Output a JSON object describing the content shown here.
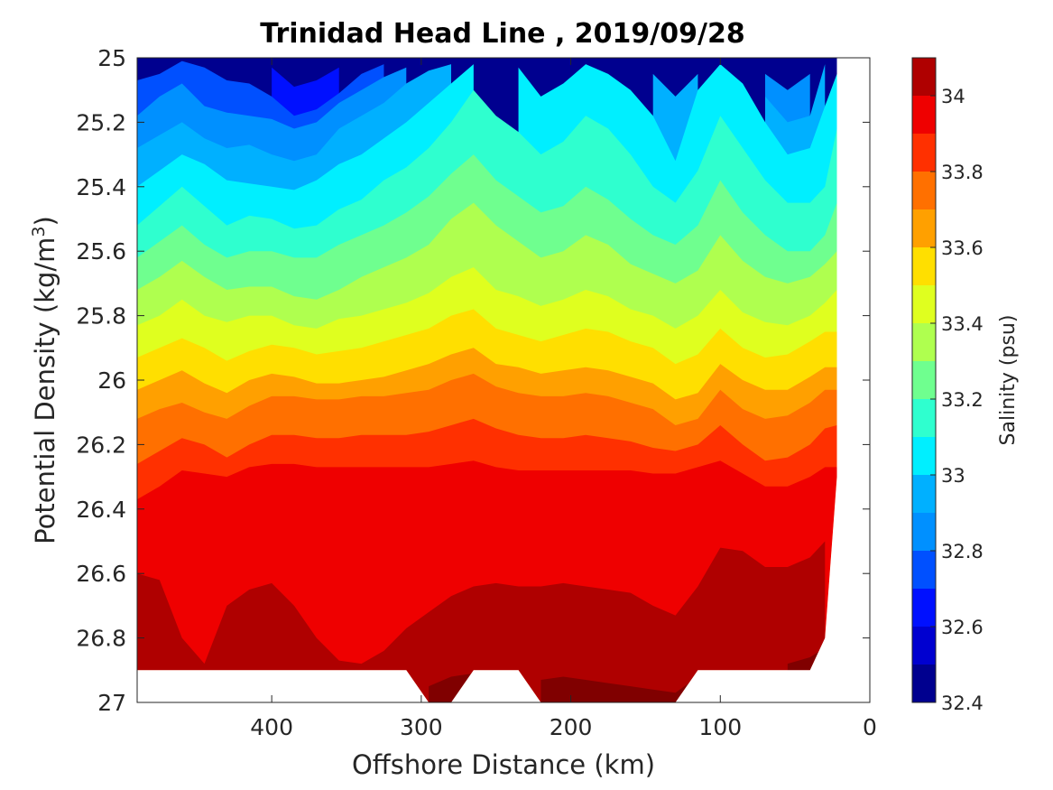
{
  "chart_data": {
    "type": "heatmap",
    "subtype": "filled-contour",
    "title": "Trinidad Head Line , 2019/09/28",
    "xlabel": "Offshore Distance (km)",
    "ylabel": "Potential Density (kg/m³)",
    "ylabel_main": "Potential Density (kg/m",
    "ylabel_sup": "3",
    "ylabel_close": ")",
    "xlim": [
      490,
      0
    ],
    "x_reversed": true,
    "ylim": [
      25,
      27
    ],
    "y_reversed": true,
    "xticks": [
      400,
      300,
      200,
      100,
      0
    ],
    "xtick_labels": [
      "400",
      "300",
      "200",
      "100",
      "0"
    ],
    "yticks": [
      25,
      25.2,
      25.4,
      25.6,
      25.8,
      26,
      26.2,
      26.4,
      26.6,
      26.8,
      27
    ],
    "ytick_labels": [
      "25",
      "25.2",
      "25.4",
      "25.6",
      "25.8",
      "26",
      "26.2",
      "26.4",
      "26.6",
      "26.8",
      "27"
    ],
    "data_x_range": [
      490,
      22
    ],
    "colorbar": {
      "label": "Salinity (psu)",
      "range": [
        32.4,
        34.1
      ],
      "levels": [
        32.4,
        32.5,
        32.6,
        32.7,
        32.8,
        32.9,
        33.0,
        33.1,
        33.2,
        33.3,
        33.4,
        33.5,
        33.6,
        33.7,
        33.8,
        33.9,
        34.0,
        34.1
      ],
      "colors": [
        "#00008f",
        "#0000d0",
        "#0010ff",
        "#0050ff",
        "#0090ff",
        "#00b0ff",
        "#00efff",
        "#2fffcf",
        "#6fff8f",
        "#afff4f",
        "#dfff1f",
        "#ffdf00",
        "#ffa000",
        "#ff7000",
        "#ff3000",
        "#ef0000",
        "#af0000",
        "#800000"
      ],
      "ticks": [
        32.4,
        32.6,
        32.8,
        33.0,
        33.2,
        33.4,
        33.6,
        33.8,
        34.0
      ],
      "tick_labels": [
        "32.4",
        "32.6",
        "32.8",
        "33",
        "33.2",
        "33.4",
        "33.6",
        "33.8",
        "34"
      ]
    },
    "contour_boundaries": {
      "x": [
        490,
        475,
        460,
        445,
        430,
        415,
        400,
        385,
        370,
        355,
        340,
        325,
        310,
        295,
        280,
        265,
        250,
        235,
        220,
        205,
        190,
        175,
        160,
        145,
        130,
        115,
        100,
        85,
        70,
        55,
        40,
        30,
        22
      ],
      "lines": [
        {
          "level": 32.6,
          "y": [
            null,
            25.01,
            null,
            null,
            null,
            null,
            25.03,
            25.09,
            25.07,
            25.03,
            null,
            null,
            null,
            null,
            null,
            null,
            null,
            null,
            null,
            null,
            null,
            null,
            null,
            null,
            null,
            null,
            null,
            null,
            null,
            null,
            null,
            null,
            null
          ]
        },
        {
          "level": 32.7,
          "y": [
            25.07,
            25.05,
            25.01,
            25.03,
            25.07,
            25.08,
            25.12,
            25.18,
            25.16,
            25.11,
            25.05,
            25.02,
            null,
            null,
            null,
            null,
            null,
            null,
            null,
            null,
            null,
            null,
            null,
            null,
            null,
            null,
            null,
            null,
            null,
            null,
            null,
            null,
            null
          ]
        },
        {
          "level": 32.8,
          "y": [
            25.18,
            25.12,
            25.08,
            25.15,
            25.17,
            25.18,
            25.19,
            25.22,
            25.2,
            25.14,
            25.1,
            25.06,
            25.03,
            null,
            null,
            null,
            null,
            null,
            null,
            null,
            null,
            null,
            null,
            null,
            null,
            25.08,
            null,
            null,
            25.05,
            25.1,
            25.05,
            null,
            null
          ]
        },
        {
          "level": 32.9,
          "y": [
            25.28,
            25.24,
            25.2,
            25.25,
            25.28,
            25.27,
            25.3,
            25.32,
            25.3,
            25.22,
            25.18,
            25.14,
            25.08,
            25.04,
            25.02,
            null,
            null,
            null,
            null,
            null,
            null,
            null,
            null,
            25.05,
            25.12,
            25.05,
            null,
            null,
            25.12,
            25.2,
            25.18,
            25.02,
            null
          ]
        },
        {
          "level": 33.0,
          "y": [
            25.4,
            25.35,
            25.3,
            25.33,
            25.38,
            25.39,
            25.4,
            25.41,
            25.38,
            25.33,
            25.3,
            25.25,
            25.2,
            25.14,
            25.08,
            25.02,
            null,
            25.03,
            25.12,
            25.08,
            25.02,
            25.05,
            25.1,
            25.18,
            25.32,
            25.1,
            25.02,
            25.08,
            25.2,
            25.3,
            25.28,
            25.15,
            25.05
          ]
        },
        {
          "level": 33.1,
          "y": [
            25.52,
            25.46,
            25.4,
            25.46,
            25.52,
            25.49,
            25.5,
            25.53,
            25.52,
            25.47,
            25.44,
            25.38,
            25.34,
            25.28,
            25.2,
            25.1,
            25.18,
            25.23,
            25.3,
            25.26,
            25.18,
            25.22,
            25.3,
            25.4,
            25.45,
            25.35,
            25.18,
            25.28,
            25.38,
            25.45,
            25.45,
            25.4,
            25.22
          ]
        },
        {
          "level": 33.2,
          "y": [
            25.62,
            25.57,
            25.52,
            25.58,
            25.62,
            25.6,
            25.6,
            25.62,
            25.62,
            25.58,
            25.55,
            25.52,
            25.48,
            25.43,
            25.36,
            25.3,
            25.38,
            25.43,
            25.48,
            25.46,
            25.4,
            25.44,
            25.5,
            25.55,
            25.58,
            25.52,
            25.38,
            25.48,
            25.55,
            25.6,
            25.6,
            25.55,
            25.45
          ]
        },
        {
          "level": 33.3,
          "y": [
            25.72,
            25.68,
            25.63,
            25.68,
            25.72,
            25.71,
            25.71,
            25.74,
            25.75,
            25.72,
            25.68,
            25.65,
            25.62,
            25.58,
            25.5,
            25.45,
            25.52,
            25.57,
            25.62,
            25.6,
            25.55,
            25.58,
            25.64,
            25.67,
            25.7,
            25.66,
            25.55,
            25.63,
            25.68,
            25.7,
            25.68,
            25.64,
            25.6
          ]
        },
        {
          "level": 33.4,
          "y": [
            25.83,
            25.8,
            25.75,
            25.8,
            25.82,
            25.8,
            25.8,
            25.83,
            25.84,
            25.81,
            25.8,
            25.78,
            25.76,
            25.73,
            25.68,
            25.65,
            25.72,
            25.74,
            25.77,
            25.75,
            25.72,
            25.74,
            25.78,
            25.8,
            25.84,
            25.8,
            25.72,
            25.79,
            25.82,
            25.83,
            25.8,
            25.76,
            25.72
          ]
        },
        {
          "level": 33.5,
          "y": [
            25.93,
            25.9,
            25.87,
            25.9,
            25.94,
            25.91,
            25.89,
            25.9,
            25.92,
            25.91,
            25.9,
            25.88,
            25.86,
            25.84,
            25.8,
            25.78,
            25.84,
            25.86,
            25.88,
            25.86,
            25.84,
            25.85,
            25.88,
            25.9,
            25.95,
            25.92,
            25.84,
            25.9,
            25.93,
            25.92,
            25.88,
            25.85,
            25.85
          ]
        },
        {
          "level": 33.6,
          "y": [
            26.03,
            26.0,
            25.97,
            26.01,
            26.04,
            26.0,
            25.98,
            25.99,
            26.01,
            26.01,
            26.0,
            25.99,
            25.97,
            25.95,
            25.92,
            25.9,
            25.95,
            25.96,
            25.98,
            25.97,
            25.96,
            25.97,
            25.99,
            26.01,
            26.06,
            26.04,
            25.95,
            26.0,
            26.03,
            26.03,
            25.99,
            25.96,
            25.96
          ]
        },
        {
          "level": 33.7,
          "y": [
            26.12,
            26.09,
            26.07,
            26.1,
            26.12,
            26.08,
            26.05,
            26.05,
            26.06,
            26.06,
            26.05,
            26.05,
            26.04,
            26.03,
            26.0,
            25.98,
            26.02,
            26.04,
            26.05,
            26.05,
            26.04,
            26.05,
            26.07,
            26.09,
            26.14,
            26.12,
            26.03,
            26.09,
            26.12,
            26.11,
            26.07,
            26.03,
            26.03
          ]
        },
        {
          "level": 33.8,
          "y": [
            26.26,
            26.22,
            26.18,
            26.2,
            26.24,
            26.2,
            26.17,
            26.17,
            26.18,
            26.18,
            26.17,
            26.17,
            26.17,
            26.16,
            26.14,
            26.12,
            26.15,
            26.17,
            26.18,
            26.18,
            26.17,
            26.18,
            26.19,
            26.21,
            26.22,
            26.2,
            26.14,
            26.2,
            26.25,
            26.24,
            26.2,
            26.15,
            26.14
          ]
        },
        {
          "level": 33.9,
          "y": [
            26.37,
            26.33,
            26.28,
            26.29,
            26.3,
            26.27,
            26.26,
            26.26,
            26.27,
            26.27,
            26.27,
            26.27,
            26.27,
            26.27,
            26.26,
            26.25,
            26.27,
            26.28,
            26.28,
            26.28,
            26.28,
            26.28,
            26.28,
            26.29,
            26.29,
            26.27,
            26.25,
            26.29,
            26.33,
            26.33,
            26.3,
            26.27,
            26.27
          ]
        },
        {
          "level": 34.0,
          "y": [
            26.6,
            26.62,
            26.8,
            26.88,
            26.7,
            26.65,
            26.63,
            26.7,
            26.8,
            26.87,
            26.88,
            26.84,
            26.77,
            26.72,
            26.67,
            26.64,
            26.63,
            26.64,
            26.64,
            26.63,
            26.64,
            26.65,
            26.66,
            26.7,
            26.73,
            26.64,
            26.52,
            26.53,
            26.58,
            26.58,
            26.55,
            26.5,
            null
          ]
        },
        {
          "level": 34.1,
          "y": [
            null,
            null,
            null,
            null,
            null,
            null,
            null,
            null,
            null,
            null,
            null,
            null,
            null,
            26.95,
            26.92,
            26.91,
            null,
            null,
            26.93,
            26.92,
            26.93,
            26.94,
            26.95,
            26.96,
            26.97,
            26.92,
            null,
            null,
            null,
            26.88,
            26.86,
            26.83,
            null
          ]
        }
      ]
    },
    "data_bottom": {
      "x": [
        490,
        310,
        295,
        280,
        265,
        250,
        235,
        220,
        205,
        190,
        175,
        160,
        145,
        130,
        115,
        100,
        85,
        70,
        55,
        40,
        30,
        22
      ],
      "y": [
        26.9,
        26.9,
        27.0,
        27.0,
        26.9,
        26.9,
        26.9,
        27.0,
        27.0,
        27.0,
        27.0,
        27.0,
        27.0,
        27.0,
        26.9,
        26.9,
        26.9,
        26.9,
        26.9,
        26.9,
        26.8,
        26.3
      ]
    }
  }
}
